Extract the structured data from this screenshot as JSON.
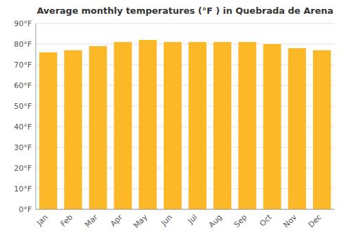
{
  "chart_data": {
    "type": "bar",
    "title": "Average monthly temperatures (°F ) in Quebrada de Arena",
    "categories": [
      "Jan",
      "Feb",
      "Mar",
      "Apr",
      "May",
      "Jun",
      "Jul",
      "Aug",
      "Sep",
      "Oct",
      "Nov",
      "Dec"
    ],
    "values": [
      76,
      77,
      79,
      81,
      82,
      81,
      81,
      81,
      81,
      80,
      78,
      77
    ],
    "color": "#FDB827",
    "ylim": [
      0,
      90
    ],
    "yticks": [
      {
        "value": 0,
        "label": "0°F"
      },
      {
        "value": 10,
        "label": "10°F"
      },
      {
        "value": 20,
        "label": "20°F"
      },
      {
        "value": 30,
        "label": "30°F"
      },
      {
        "value": 40,
        "label": "40°F"
      },
      {
        "value": 50,
        "label": "50°F"
      },
      {
        "value": 60,
        "label": "60°F"
      },
      {
        "value": 70,
        "label": "70°F"
      },
      {
        "value": 80,
        "label": "80°F"
      },
      {
        "value": 90,
        "label": "90°F"
      }
    ],
    "grid": true
  }
}
